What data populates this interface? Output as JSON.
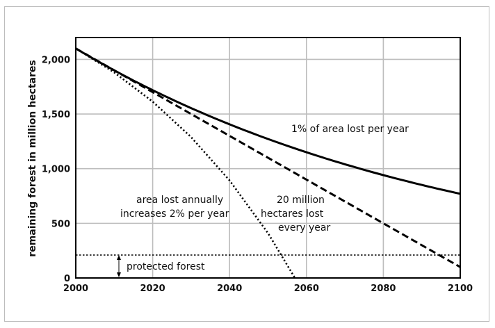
{
  "chart_data": {
    "type": "line",
    "title": "",
    "xlabel": "",
    "ylabel": "remaining forest in million hectares",
    "xlim": [
      2000,
      2100
    ],
    "ylim": [
      0,
      2200
    ],
    "x_ticks": [
      2000,
      2020,
      2040,
      2060,
      2080,
      2100
    ],
    "x_tick_labels": [
      "2000",
      "2020",
      "2040",
      "2060",
      "2080",
      "2100"
    ],
    "y_ticks": [
      0,
      500,
      1000,
      1500,
      2000
    ],
    "y_tick_labels": [
      "0",
      "500",
      "1,000",
      "1,500",
      "2,000"
    ],
    "grid": true,
    "series": [
      {
        "name": "1% of area lost per year",
        "style": "solid",
        "x": [
          2000,
          2010,
          2020,
          2030,
          2040,
          2050,
          2060,
          2070,
          2080,
          2090,
          2100
        ],
        "values": [
          2100,
          1900,
          1718,
          1554,
          1405,
          1271,
          1150,
          1040,
          940,
          850,
          770
        ]
      },
      {
        "name": "20 million hectares lost every year",
        "style": "dashed",
        "x": [
          2000,
          2020,
          2040,
          2060,
          2080,
          2100
        ],
        "values": [
          2100,
          1700,
          1300,
          900,
          500,
          100
        ]
      },
      {
        "name": "area lost annually increases 2% per year",
        "style": "dotted",
        "x": [
          2000,
          2010,
          2020,
          2030,
          2040,
          2050,
          2057
        ],
        "values": [
          2100,
          1881,
          1614,
          1289,
          893,
          410,
          0
        ]
      },
      {
        "name": "protected forest",
        "style": "dotted",
        "x": [
          2000,
          2100
        ],
        "values": [
          210,
          210
        ]
      }
    ],
    "annotations": {
      "pct1": "1% of area lost per year",
      "fixed_l1": "20 million",
      "fixed_l2": "hectares lost",
      "fixed_l3": "every year",
      "incr_l1": "area lost annually",
      "incr_l2": "increases 2% per year",
      "protected": "protected forest"
    }
  }
}
